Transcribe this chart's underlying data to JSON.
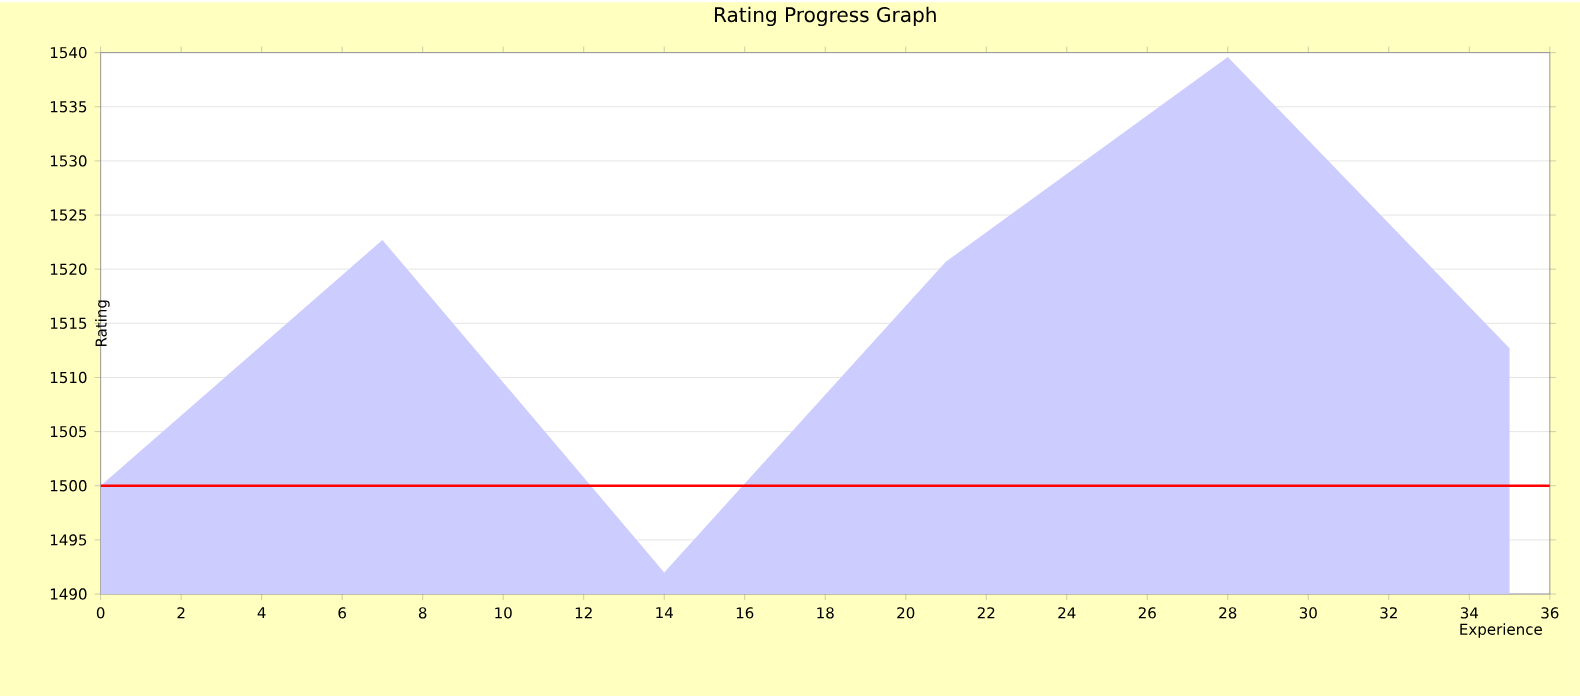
{
  "chart_data": {
    "type": "area",
    "title": "Rating Progress Graph",
    "xlabel": "Experience",
    "ylabel": "Rating",
    "x": [
      0,
      7,
      14,
      21,
      28,
      35
    ],
    "series": [
      {
        "color": "#ccccff",
        "values": [
          1500,
          1522.7,
          1492,
          1520.7,
          1539.6,
          1512.7
        ]
      }
    ],
    "xlim": [
      0,
      36
    ],
    "xticks": [
      0,
      2,
      4,
      6,
      8,
      10,
      12,
      14,
      16,
      18,
      20,
      22,
      24,
      26,
      28,
      30,
      32,
      34,
      36
    ],
    "ylim": [
      1490,
      1540
    ],
    "yticks": [
      1490,
      1495,
      1500,
      1505,
      1510,
      1515,
      1520,
      1525,
      1530,
      1535,
      1540
    ],
    "ref_lines": [
      {
        "axis": "y",
        "value": 1500,
        "color": "#ff0000"
      }
    ],
    "grid": "y"
  }
}
